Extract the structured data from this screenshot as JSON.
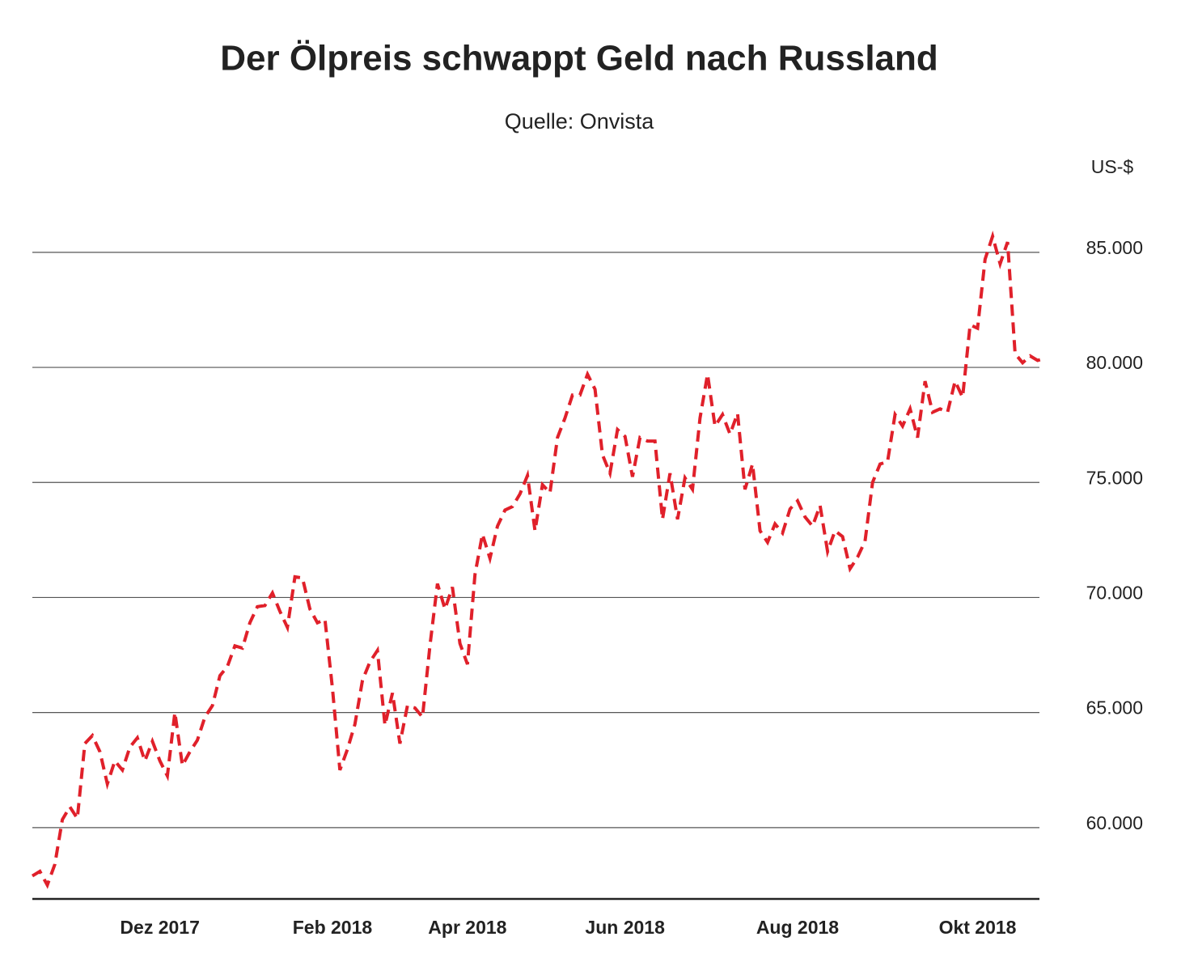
{
  "chart_data": {
    "type": "line",
    "title": "Der Ölpreis schwappt Geld nach Russland",
    "subtitle": "Quelle: Onvista",
    "ylabel": "US-$",
    "color": "#e0202a",
    "line_style": "dashed",
    "grid": true,
    "ylim": [
      56.9,
      87
    ],
    "yticks": [
      {
        "value": 60,
        "label": "60.000"
      },
      {
        "value": 65,
        "label": "65.000"
      },
      {
        "value": 70,
        "label": "70.000"
      },
      {
        "value": 75,
        "label": "75.000"
      },
      {
        "value": 80,
        "label": "80.000"
      },
      {
        "value": 85,
        "label": "85.000"
      }
    ],
    "categories": [
      null,
      null,
      null,
      null,
      null,
      null,
      null,
      null,
      null,
      null,
      null,
      null,
      null,
      null,
      null,
      null,
      null,
      "Dez 2017",
      null,
      null,
      null,
      null,
      null,
      null,
      null,
      null,
      null,
      null,
      null,
      null,
      null,
      null,
      null,
      null,
      null,
      null,
      null,
      null,
      null,
      null,
      "Feb 2018",
      null,
      null,
      null,
      null,
      null,
      null,
      null,
      null,
      null,
      null,
      null,
      null,
      null,
      null,
      null,
      null,
      null,
      "Apr 2018",
      null,
      null,
      null,
      null,
      null,
      null,
      null,
      null,
      null,
      null,
      null,
      null,
      null,
      null,
      null,
      null,
      null,
      null,
      null,
      null,
      "Jun 2018",
      null,
      null,
      null,
      null,
      null,
      null,
      null,
      null,
      null,
      null,
      null,
      null,
      null,
      null,
      null,
      null,
      null,
      null,
      null,
      null,
      null,
      null,
      "Aug 2018",
      null,
      null,
      null,
      null,
      null,
      null,
      null,
      null,
      null,
      null,
      null,
      null,
      null,
      null,
      null,
      null,
      null,
      null,
      null,
      null,
      null,
      null,
      null,
      "Okt 2018",
      null,
      null,
      null,
      null,
      null,
      null,
      null,
      null,
      null
    ],
    "values": [
      57.9,
      58.1,
      57.5,
      58.4,
      60.35,
      60.9,
      60.4,
      63.65,
      64.0,
      63.3,
      61.9,
      62.9,
      62.5,
      63.5,
      63.9,
      62.9,
      63.75,
      62.9,
      62.25,
      65.0,
      62.7,
      63.3,
      63.8,
      64.8,
      65.3,
      66.6,
      67.0,
      67.9,
      67.8,
      68.9,
      69.6,
      69.65,
      70.2,
      69.4,
      68.7,
      70.9,
      70.85,
      69.5,
      68.9,
      69.05,
      66.05,
      62.5,
      63.4,
      64.5,
      66.4,
      67.2,
      67.7,
      64.45,
      65.85,
      63.65,
      65.3,
      65.2,
      64.8,
      67.9,
      70.6,
      69.5,
      70.45,
      68.0,
      67.1,
      71.0,
      72.75,
      71.7,
      73.1,
      73.8,
      73.95,
      74.5,
      75.3,
      72.9,
      74.9,
      74.55,
      76.95,
      77.8,
      78.8,
      78.8,
      79.7,
      79.05,
      76.2,
      75.4,
      77.3,
      77.0,
      75.25,
      76.95,
      76.8,
      76.8,
      73.4,
      75.4,
      73.4,
      75.2,
      74.7,
      77.8,
      79.7,
      77.45,
      77.95,
      77.1,
      78.0,
      74.7,
      75.8,
      72.9,
      72.4,
      73.2,
      72.8,
      73.85,
      74.2,
      73.5,
      73.1,
      74.0,
      72.0,
      72.9,
      72.65,
      71.25,
      71.75,
      72.45,
      75.0,
      75.8,
      75.9,
      77.95,
      77.45,
      78.2,
      76.95,
      79.4,
      78.05,
      78.2,
      78.05,
      79.4,
      78.7,
      81.85,
      81.7,
      84.7,
      85.7,
      84.5,
      85.45,
      80.6,
      80.2,
      80.5,
      80.3,
      80.4
    ]
  }
}
